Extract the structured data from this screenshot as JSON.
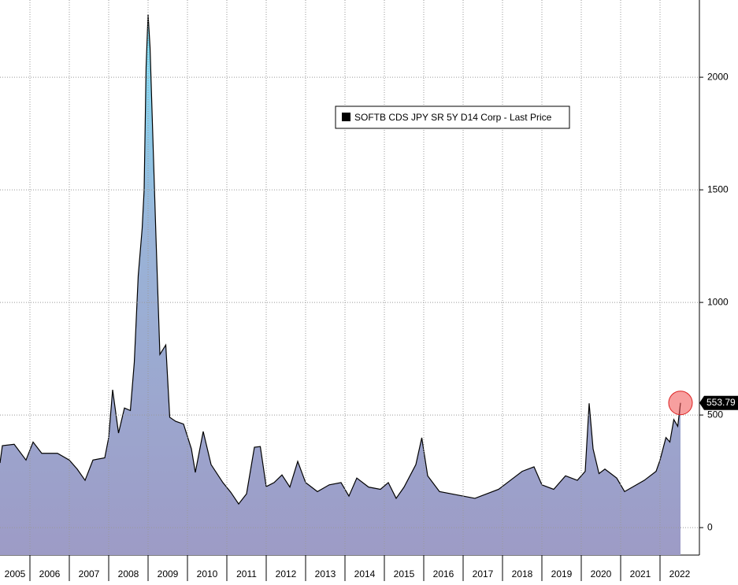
{
  "chart_data": {
    "type": "area",
    "x": [
      2005.24,
      2005.3,
      2005.6,
      2005.9,
      2006.08,
      2006.3,
      2006.7,
      2007.0,
      2007.2,
      2007.4,
      2007.6,
      2007.9,
      2008.0,
      2008.1,
      2008.25,
      2008.4,
      2008.55,
      2008.65,
      2008.75,
      2008.85,
      2008.9,
      2008.95,
      2009.0,
      2009.05,
      2009.1,
      2009.2,
      2009.3,
      2009.45,
      2009.55,
      2009.7,
      2009.9,
      2010.1,
      2010.2,
      2010.4,
      2010.6,
      2010.9,
      2011.1,
      2011.3,
      2011.5,
      2011.7,
      2011.85,
      2012.0,
      2012.2,
      2012.4,
      2012.6,
      2012.8,
      2013.0,
      2013.3,
      2013.6,
      2013.9,
      2014.1,
      2014.3,
      2014.6,
      2014.9,
      2015.1,
      2015.3,
      2015.5,
      2015.8,
      2015.95,
      2016.1,
      2016.4,
      2016.7,
      2017.0,
      2017.3,
      2017.6,
      2017.9,
      2018.2,
      2018.5,
      2018.8,
      2019.0,
      2019.3,
      2019.6,
      2019.9,
      2020.1,
      2020.2,
      2020.3,
      2020.45,
      2020.6,
      2020.9,
      2021.1,
      2021.3,
      2021.6,
      2021.9,
      2022.0,
      2022.15,
      2022.25,
      2022.35,
      2022.45,
      2022.52
    ],
    "series": [
      {
        "name": "SOFTB CDS JPY SR 5Y D14 Corp - Last Price",
        "color": "#000000",
        "values": [
          287,
          364,
          370,
          300,
          380,
          330,
          330,
          300,
          260,
          210,
          300,
          310,
          400,
          612,
          420,
          531,
          520,
          734,
          1119,
          1329,
          1500,
          2045,
          2280,
          2133,
          1853,
          1294,
          769,
          811,
          490,
          472,
          460,
          350,
          245,
          427,
          280,
          200,
          157,
          105,
          150,
          357,
          360,
          182,
          200,
          234,
          180,
          294,
          200,
          160,
          190,
          200,
          140,
          220,
          180,
          170,
          200,
          130,
          180,
          280,
          399,
          230,
          160,
          150,
          140,
          130,
          150,
          170,
          210,
          250,
          270,
          190,
          170,
          230,
          210,
          250,
          552,
          350,
          240,
          260,
          220,
          160,
          180,
          210,
          250,
          300,
          400,
          380,
          480,
          450,
          553.79
        ]
      }
    ],
    "xlim": [
      2005.24,
      2023
    ],
    "xticks": [
      2005,
      2006,
      2007,
      2008,
      2009,
      2010,
      2011,
      2012,
      2013,
      2014,
      2015,
      2016,
      2017,
      2018,
      2019,
      2020,
      2021,
      2022
    ],
    "ylim": [
      -122,
      2343
    ],
    "yticks": [
      0,
      500,
      1000,
      1500,
      2000
    ],
    "grid": true
  }
}
